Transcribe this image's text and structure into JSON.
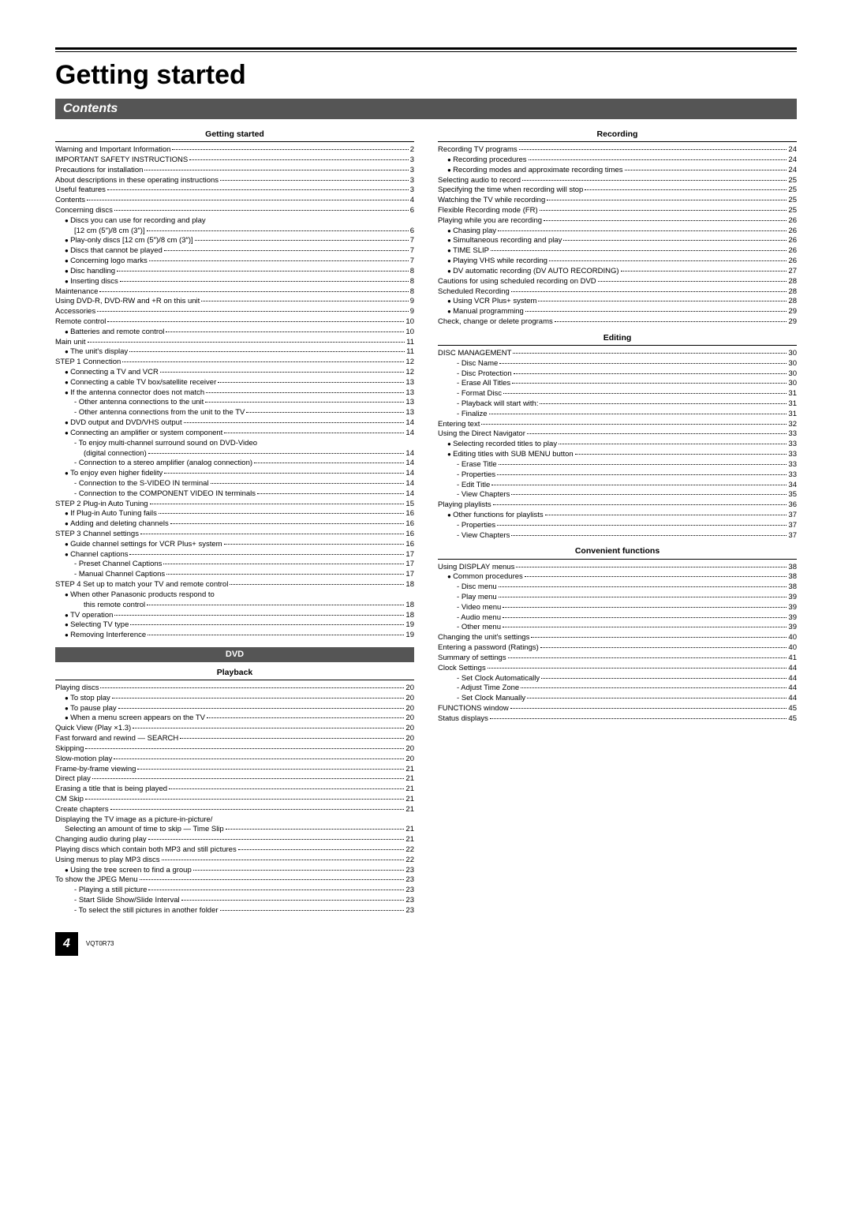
{
  "title": "Getting started",
  "contents_label": "Contents",
  "dvd_label": "DVD",
  "page_number": "4",
  "doc_code": "VQT0R73",
  "sections_left": [
    {
      "header": "Getting started",
      "items": [
        {
          "t": "Warning and Important Information",
          "p": "2",
          "i": 1
        },
        {
          "t": "IMPORTANT SAFETY INSTRUCTIONS",
          "p": "3",
          "i": 1
        },
        {
          "t": "Precautions for installation",
          "p": "3",
          "i": 1
        },
        {
          "t": "About descriptions in these operating instructions",
          "p": "3",
          "i": 1
        },
        {
          "t": "Useful features",
          "p": "3",
          "i": 1
        },
        {
          "t": "Contents",
          "p": "4",
          "i": 1
        },
        {
          "t": "Concerning discs",
          "p": "6",
          "i": 1
        },
        {
          "t": "Discs you can use for recording and play",
          "p": "",
          "i": 2,
          "b": 1,
          "nl": 1
        },
        {
          "t": "[12 cm (5″)/8 cm (3″)]",
          "p": "6",
          "i": 3
        },
        {
          "t": "Play-only discs [12 cm (5″)/8 cm (3″)]",
          "p": "7",
          "i": 2,
          "b": 1
        },
        {
          "t": "Discs that cannot be played",
          "p": "7",
          "i": 2,
          "b": 1
        },
        {
          "t": "Concerning logo marks",
          "p": "7",
          "i": 2,
          "b": 1
        },
        {
          "t": "Disc handling",
          "p": "8",
          "i": 2,
          "b": 1
        },
        {
          "t": "Inserting discs",
          "p": "8",
          "i": 2,
          "b": 1
        },
        {
          "t": "Maintenance",
          "p": "8",
          "i": 1
        },
        {
          "t": "Using DVD-R, DVD-RW and +R on this unit",
          "p": "9",
          "i": 1
        },
        {
          "t": "Accessories",
          "p": "9",
          "i": 1
        },
        {
          "t": "Remote control",
          "p": "10",
          "i": 1
        },
        {
          "t": "Batteries and remote control",
          "p": "10",
          "i": 2,
          "b": 1
        },
        {
          "t": "Main unit",
          "p": "11",
          "i": 1
        },
        {
          "t": "The unit's display",
          "p": "11",
          "i": 2,
          "b": 1
        },
        {
          "t": "STEP 1  Connection",
          "p": "12",
          "i": 1
        },
        {
          "t": "Connecting a TV and VCR",
          "p": "12",
          "i": 2,
          "b": 1
        },
        {
          "t": "Connecting a cable TV box/satellite receiver",
          "p": "13",
          "i": 2,
          "b": 1
        },
        {
          "t": "If the antenna connector does not match",
          "p": "13",
          "i": 2,
          "b": 1
        },
        {
          "t": "Other antenna connections to the unit",
          "p": "13",
          "i": 3,
          "d": 1
        },
        {
          "t": "Other antenna connections from the unit to the TV",
          "p": "13",
          "i": 3,
          "d": 1
        },
        {
          "t": "DVD output and DVD/VHS output",
          "p": "14",
          "i": 2,
          "b": 1
        },
        {
          "t": "Connecting an amplifier or system component",
          "p": "14",
          "i": 2,
          "b": 1
        },
        {
          "t": "To enjoy multi-channel surround sound on DVD-Video",
          "p": "",
          "i": 3,
          "d": 1,
          "nl": 1
        },
        {
          "t": "(digital connection)",
          "p": "14",
          "i": 4
        },
        {
          "t": "Connection to a stereo amplifier (analog connection)",
          "p": "14",
          "i": 3,
          "d": 1
        },
        {
          "t": "To enjoy even higher fidelity",
          "p": "14",
          "i": 2,
          "b": 1
        },
        {
          "t": "Connection to the S-VIDEO IN terminal",
          "p": "14",
          "i": 3,
          "d": 1
        },
        {
          "t": "Connection to the COMPONENT VIDEO IN terminals",
          "p": "14",
          "i": 3,
          "d": 1
        },
        {
          "t": "STEP 2  Plug-in Auto Tuning",
          "p": "15",
          "i": 1
        },
        {
          "t": "If Plug-in Auto Tuning fails",
          "p": "16",
          "i": 2,
          "b": 1
        },
        {
          "t": "Adding and deleting channels",
          "p": "16",
          "i": 2,
          "b": 1
        },
        {
          "t": "STEP 3  Channel settings",
          "p": "16",
          "i": 1
        },
        {
          "t": "Guide channel settings for VCR Plus+ system",
          "p": "16",
          "i": 2,
          "b": 1
        },
        {
          "t": "Channel captions",
          "p": "17",
          "i": 2,
          "b": 1
        },
        {
          "t": "Preset Channel Captions",
          "p": "17",
          "i": 3,
          "d": 1
        },
        {
          "t": "Manual Channel Captions",
          "p": "17",
          "i": 3,
          "d": 1
        },
        {
          "t": "STEP 4  Set up to match your TV and remote control",
          "p": "18",
          "i": 1
        },
        {
          "t": "When other Panasonic products respond to",
          "p": "",
          "i": 2,
          "b": 1,
          "nl": 1
        },
        {
          "t": "this remote control",
          "p": "18",
          "i": 4
        },
        {
          "t": "TV operation",
          "p": "18",
          "i": 2,
          "b": 1
        },
        {
          "t": "Selecting TV type",
          "p": "19",
          "i": 2,
          "b": 1
        },
        {
          "t": "Removing Interference",
          "p": "19",
          "i": 2,
          "b": 1
        }
      ]
    },
    {
      "header": "Playback",
      "dvd_before": true,
      "items": [
        {
          "t": "Playing discs",
          "p": "20",
          "i": 1
        },
        {
          "t": "To stop play",
          "p": "20",
          "i": 2,
          "b": 1
        },
        {
          "t": "To pause play",
          "p": "20",
          "i": 2,
          "b": 1
        },
        {
          "t": "When a menu screen appears on the TV",
          "p": "20",
          "i": 2,
          "b": 1
        },
        {
          "t": "Quick View (Play ×1.3)",
          "p": "20",
          "i": 1
        },
        {
          "t": "Fast forward and rewind — SEARCH",
          "p": "20",
          "i": 1
        },
        {
          "t": "Skipping",
          "p": "20",
          "i": 1
        },
        {
          "t": "Slow-motion play",
          "p": "20",
          "i": 1
        },
        {
          "t": "Frame-by-frame viewing",
          "p": "21",
          "i": 1
        },
        {
          "t": "Direct play",
          "p": "21",
          "i": 1
        },
        {
          "t": "Erasing a title that is being played",
          "p": "21",
          "i": 1
        },
        {
          "t": "CM Skip",
          "p": "21",
          "i": 1
        },
        {
          "t": "Create chapters",
          "p": "21",
          "i": 1
        },
        {
          "t": "Displaying the TV image as a picture-in-picture/",
          "p": "",
          "i": 1,
          "nl": 1
        },
        {
          "t": "Selecting an amount of time to skip — Time Slip",
          "p": "21",
          "i": 2
        },
        {
          "t": "Changing audio during play",
          "p": "21",
          "i": 1
        },
        {
          "t": "Playing discs which contain both MP3 and still pictures",
          "p": "22",
          "i": 1
        },
        {
          "t": "Using menus to play MP3 discs",
          "p": "22",
          "i": 1
        },
        {
          "t": "Using the tree screen to find a group",
          "p": "23",
          "i": 2,
          "b": 1
        },
        {
          "t": "To show the JPEG Menu",
          "p": "23",
          "i": 1
        },
        {
          "t": "Playing a still picture",
          "p": "23",
          "i": 3,
          "d": 1
        },
        {
          "t": "Start Slide Show/Slide Interval",
          "p": "23",
          "i": 3,
          "d": 1
        },
        {
          "t": "To select the still pictures in another folder",
          "p": "23",
          "i": 3,
          "d": 1
        }
      ]
    }
  ],
  "sections_right": [
    {
      "header": "Recording",
      "items": [
        {
          "t": "Recording TV programs",
          "p": "24",
          "i": 1
        },
        {
          "t": "Recording procedures",
          "p": "24",
          "i": 2,
          "b": 1
        },
        {
          "t": "Recording modes and approximate recording times",
          "p": "24",
          "i": 2,
          "b": 1
        },
        {
          "t": "Selecting audio to record",
          "p": "25",
          "i": 1
        },
        {
          "t": "Specifying the time when recording will stop",
          "p": "25",
          "i": 1
        },
        {
          "t": "Watching the TV while recording",
          "p": "25",
          "i": 1
        },
        {
          "t": "Flexible Recording mode (FR)",
          "p": "25",
          "i": 1
        },
        {
          "t": "Playing while you are recording",
          "p": "26",
          "i": 1
        },
        {
          "t": "Chasing play",
          "p": "26",
          "i": 2,
          "b": 1
        },
        {
          "t": "Simultaneous recording and play",
          "p": "26",
          "i": 2,
          "b": 1
        },
        {
          "t": "TIME SLIP",
          "p": "26",
          "i": 2,
          "b": 1
        },
        {
          "t": "Playing VHS while recording",
          "p": "26",
          "i": 2,
          "b": 1
        },
        {
          "t": "DV automatic recording (DV AUTO RECORDING)",
          "p": "27",
          "i": 2,
          "b": 1
        },
        {
          "t": "Cautions for using scheduled recording on DVD",
          "p": "28",
          "i": 1
        },
        {
          "t": "Scheduled Recording",
          "p": "28",
          "i": 1
        },
        {
          "t": "Using VCR Plus+ system",
          "p": "28",
          "i": 2,
          "b": 1
        },
        {
          "t": "Manual programming",
          "p": "29",
          "i": 2,
          "b": 1
        },
        {
          "t": "Check, change or delete programs",
          "p": "29",
          "i": 1
        }
      ]
    },
    {
      "header": "Editing",
      "items": [
        {
          "t": "DISC MANAGEMENT",
          "p": "30",
          "i": 1
        },
        {
          "t": "Disc Name",
          "p": "30",
          "i": 3,
          "d": 1
        },
        {
          "t": "Disc Protection",
          "p": "30",
          "i": 3,
          "d": 1
        },
        {
          "t": "Erase All Titles",
          "p": "30",
          "i": 3,
          "d": 1
        },
        {
          "t": "Format Disc",
          "p": "31",
          "i": 3,
          "d": 1
        },
        {
          "t": "Playback will start with:",
          "p": "31",
          "i": 3,
          "d": 1
        },
        {
          "t": "Finalize",
          "p": "31",
          "i": 3,
          "d": 1
        },
        {
          "t": "Entering text",
          "p": "32",
          "i": 1
        },
        {
          "t": "Using the Direct Navigator",
          "p": "33",
          "i": 1
        },
        {
          "t": "Selecting recorded titles to play",
          "p": "33",
          "i": 2,
          "b": 1
        },
        {
          "t": "Editing titles with SUB MENU button",
          "p": "33",
          "i": 2,
          "b": 1
        },
        {
          "t": "Erase Title",
          "p": "33",
          "i": 3,
          "d": 1
        },
        {
          "t": "Properties",
          "p": "33",
          "i": 3,
          "d": 1
        },
        {
          "t": "Edit Title",
          "p": "34",
          "i": 3,
          "d": 1
        },
        {
          "t": "View Chapters",
          "p": "35",
          "i": 3,
          "d": 1
        },
        {
          "t": "Playing playlists",
          "p": "36",
          "i": 1
        },
        {
          "t": "Other functions for playlists",
          "p": "37",
          "i": 2,
          "b": 1
        },
        {
          "t": "Properties",
          "p": "37",
          "i": 3,
          "d": 1
        },
        {
          "t": "View Chapters",
          "p": "37",
          "i": 3,
          "d": 1
        }
      ]
    },
    {
      "header": "Convenient functions",
      "items": [
        {
          "t": "Using DISPLAY menus",
          "p": "38",
          "i": 1
        },
        {
          "t": "Common procedures",
          "p": "38",
          "i": 2,
          "b": 1
        },
        {
          "t": "Disc menu",
          "p": "38",
          "i": 3,
          "d": 1
        },
        {
          "t": "Play menu",
          "p": "39",
          "i": 3,
          "d": 1
        },
        {
          "t": "Video menu",
          "p": "39",
          "i": 3,
          "d": 1
        },
        {
          "t": "Audio menu",
          "p": "39",
          "i": 3,
          "d": 1
        },
        {
          "t": "Other menu",
          "p": "39",
          "i": 3,
          "d": 1
        },
        {
          "t": "Changing the unit's settings",
          "p": "40",
          "i": 1
        },
        {
          "t": "Entering a password (Ratings)",
          "p": "40",
          "i": 1
        },
        {
          "t": "Summary of settings",
          "p": "41",
          "i": 1
        },
        {
          "t": "Clock Settings",
          "p": "44",
          "i": 1
        },
        {
          "t": "Set Clock Automatically",
          "p": "44",
          "i": 3,
          "d": 1
        },
        {
          "t": "Adjust Time Zone",
          "p": "44",
          "i": 3,
          "d": 1
        },
        {
          "t": "Set Clock Manually",
          "p": "44",
          "i": 3,
          "d": 1
        },
        {
          "t": "FUNCTIONS window",
          "p": "45",
          "i": 1
        },
        {
          "t": "Status displays",
          "p": "45",
          "i": 1
        }
      ]
    }
  ]
}
